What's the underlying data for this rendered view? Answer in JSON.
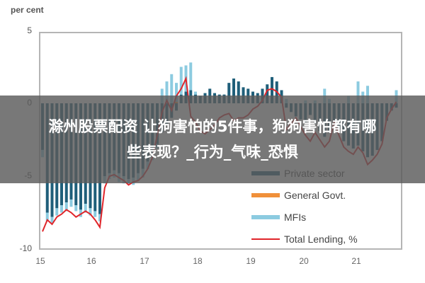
{
  "chart_data": {
    "type": "bar",
    "stacked": true,
    "unit_label": "per cent",
    "yticks": [
      "5",
      "0",
      "-5",
      "-10"
    ],
    "ylim": [
      -10,
      5
    ],
    "xticks": [
      "15",
      "16",
      "17",
      "18",
      "19",
      "20",
      "21"
    ],
    "grid": false,
    "legend_position": "lower right (inside)",
    "legend": [
      {
        "name": "Private sector",
        "color": "#1f5f7a",
        "kind": "bar"
      },
      {
        "name": "General Govt.",
        "color": "#f0903a",
        "kind": "bar"
      },
      {
        "name": "MFIs",
        "color": "#8ccbe0",
        "kind": "bar"
      },
      {
        "name": "Total Lending, %",
        "color": "#e0252a",
        "kind": "line"
      }
    ],
    "series": [
      {
        "name": "Private sector",
        "values": [
          -3.2,
          -7.5,
          -7.8,
          -7.2,
          -7.0,
          -6.8,
          -6.6,
          -7.0,
          -7.3,
          -6.9,
          -7.2,
          -7.4,
          -7.6,
          -5.0,
          -4.8,
          -4.6,
          -4.8,
          -5.0,
          -5.2,
          -5.1,
          -4.8,
          -4.5,
          -4.0,
          -3.5,
          -2.8,
          -2.0,
          -1.5,
          -1.0,
          -0.5,
          0.6,
          0.8,
          0.9,
          0.6,
          0.5,
          0.7,
          1.0,
          0.7,
          0.6,
          0.6,
          1.4,
          1.7,
          1.5,
          1.1,
          1.0,
          0.8,
          0.7,
          1.0,
          1.3,
          1.8,
          1.5,
          0.9,
          -0.3,
          -0.6,
          -0.9,
          -1.1,
          -1.3,
          -0.8,
          -1.4,
          -1.9,
          -2.3,
          -2.0,
          -1.3,
          -1.8,
          -2.6,
          -2.9,
          -3.1,
          -2.9,
          -3.3,
          -3.7,
          -3.6,
          -3.2,
          -2.6,
          -1.2,
          -0.5,
          -0.3
        ]
      },
      {
        "name": "General Govt.",
        "values": [
          0,
          0,
          0,
          0,
          0,
          0,
          0,
          0,
          0,
          0,
          0,
          0,
          0,
          0,
          0,
          0,
          0,
          0,
          0,
          0,
          0,
          0,
          0,
          0,
          0,
          0,
          0,
          0,
          0.1,
          0,
          0,
          0,
          0,
          0,
          0,
          0,
          0,
          0,
          0,
          0,
          0,
          0,
          0,
          0,
          0,
          0,
          0,
          0,
          0,
          0,
          0,
          0,
          0,
          0,
          0,
          0,
          0,
          0,
          0,
          0,
          0,
          0,
          0,
          0,
          0,
          0,
          0,
          0,
          0,
          0,
          0,
          0,
          0,
          0,
          0
        ]
      },
      {
        "name": "MFIs",
        "values": [
          -0.5,
          -0.6,
          -0.4,
          -0.5,
          -0.5,
          -0.6,
          -0.5,
          -0.4,
          -0.5,
          -0.6,
          -0.5,
          -0.4,
          -0.5,
          -0.5,
          -0.4,
          -0.5,
          -0.6,
          -0.5,
          -0.4,
          -0.5,
          -0.5,
          -0.6,
          -0.5,
          -0.4,
          -0.3,
          1.0,
          1.5,
          2.0,
          1.3,
          1.9,
          1.8,
          1.9,
          0.2,
          0,
          0,
          0,
          0,
          0,
          0,
          0,
          0,
          0,
          0,
          0,
          0,
          0,
          0,
          0,
          0,
          0,
          0,
          0.3,
          0,
          0,
          0,
          0.2,
          0,
          0.2,
          0,
          1.0,
          0.3,
          0,
          0,
          0,
          0.5,
          0,
          1.5,
          0.8,
          1.2,
          0,
          0,
          0,
          0,
          0,
          0.9
        ]
      },
      {
        "name": "Total Lending, %",
        "values": [
          -8.8,
          -8.0,
          -8.3,
          -7.8,
          -7.6,
          -7.3,
          -7.5,
          -7.8,
          -7.6,
          -7.4,
          -7.6,
          -8.0,
          -8.5,
          -5.8,
          -5.0,
          -4.9,
          -5.1,
          -5.3,
          -5.6,
          -5.4,
          -5.3,
          -5.0,
          -4.5,
          -3.7,
          -2.2,
          -0.6,
          0.2,
          -0.5,
          0.5,
          1.0,
          1.7,
          -0.9,
          -1.3,
          -1.9,
          -2.1,
          -1.8,
          -1.5,
          -1.0,
          -0.8,
          -0.7,
          -1.2,
          -1.0,
          -1.0,
          -0.8,
          -0.4,
          -0.2,
          0.2,
          0.9,
          1.0,
          0.8,
          0.4,
          -1.8,
          -1.4,
          -1.0,
          -1.6,
          -2.2,
          -2.6,
          -2.0,
          -2.5,
          -3.0,
          -2.6,
          -1.3,
          -2.2,
          -3.0,
          -3.3,
          -3.5,
          -3.0,
          -3.4,
          -4.2,
          -3.9,
          -3.5,
          -2.8,
          -1.0,
          -0.4,
          0.1
        ]
      }
    ]
  },
  "overlay": {
    "line1": "滁州股票配资 让狗害怕的5件事，狗狗害怕都有哪",
    "line2": "些表现？_行为_气味_恐惧"
  }
}
